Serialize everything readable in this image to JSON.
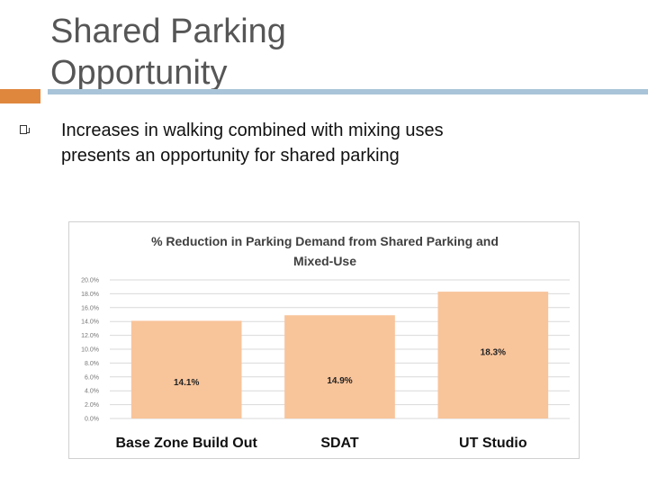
{
  "slide": {
    "title": "Shared Parking Opportunity",
    "bullet": "Increases in walking combined with mixing uses presents an opportunity for shared parking",
    "accent_color": "#E0873E",
    "rule_color": "#A9C4D8"
  },
  "chart_data": {
    "type": "bar",
    "title_lines": [
      "% Reduction in Parking Demand from Shared Parking and",
      "Mixed-Use"
    ],
    "categories": [
      "Base Zone Build Out",
      "SDAT",
      "UT Studio"
    ],
    "values": [
      14.1,
      14.9,
      18.3
    ],
    "data_labels": [
      "14.1%",
      "14.9%",
      "18.3%"
    ],
    "yticks": [
      "0.0%",
      "2.0%",
      "4.0%",
      "6.0%",
      "8.0%",
      "10.0%",
      "12.0%",
      "14.0%",
      "16.0%",
      "18.0%",
      "20.0%"
    ],
    "ylim": [
      0,
      20
    ],
    "xlabel": "",
    "ylabel": "",
    "grid": true,
    "bar_color": "#F8C49A"
  }
}
